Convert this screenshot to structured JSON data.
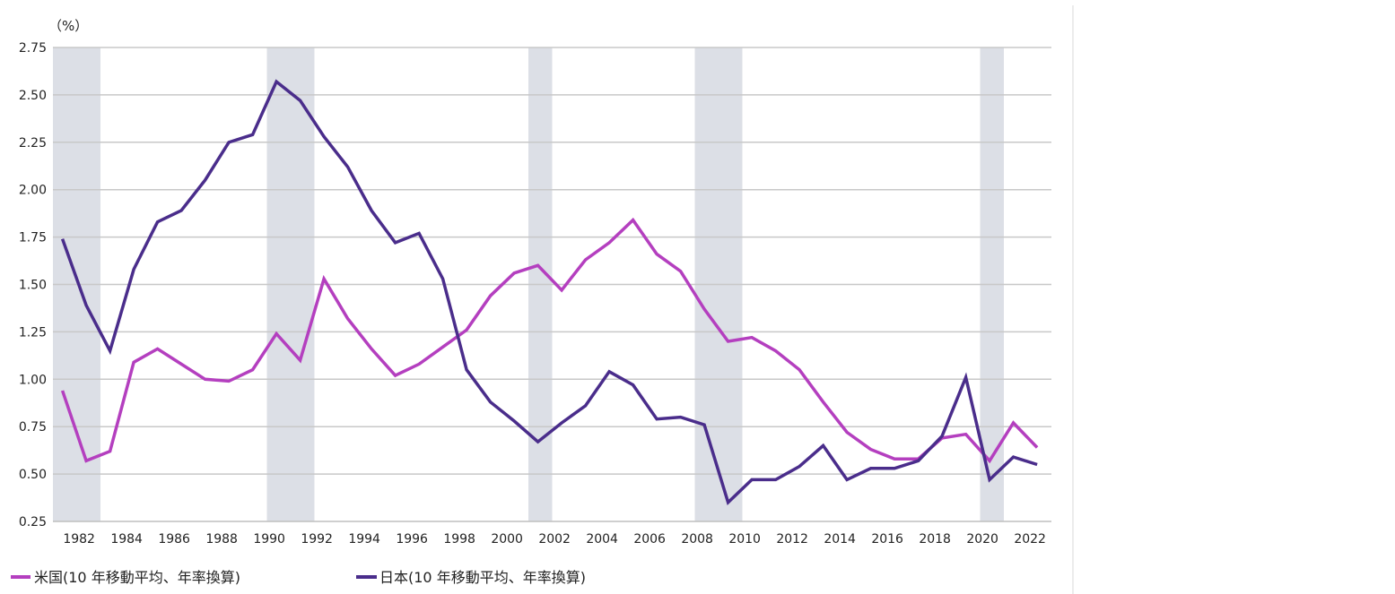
{
  "chart_data": {
    "type": "line",
    "unit_label": "（%）",
    "ylim": [
      0.25,
      2.75
    ],
    "yticks": [
      "0.25",
      "0.50",
      "0.75",
      "1.00",
      "1.25",
      "1.50",
      "1.75",
      "2.00",
      "2.25",
      "2.50",
      "2.75"
    ],
    "xlim": [
      1981.0,
      2023.0
    ],
    "xtick_labels": [
      "1982",
      "1984",
      "1986",
      "1988",
      "1990",
      "1992",
      "1994",
      "1996",
      "1998",
      "2000",
      "2002",
      "2004",
      "2006",
      "2008",
      "2010",
      "2012",
      "2014",
      "2016",
      "2018",
      "2020",
      "2022"
    ],
    "grid": true,
    "recession_periods": [
      [
        1981.0,
        1983.0
      ],
      [
        1990.0,
        1992.0
      ],
      [
        2001.0,
        2002.0
      ],
      [
        2008.0,
        2010.0
      ],
      [
        2020.0,
        2021.0
      ]
    ],
    "series": [
      {
        "name": "米国(10 年移動平均、年率換算)",
        "color": "#b43fbf",
        "x": [
          1981.4,
          1982.4,
          1983.4,
          1984.4,
          1985.4,
          1986.4,
          1987.4,
          1988.4,
          1989.4,
          1990.4,
          1991.4,
          1992.4,
          1993.4,
          1994.4,
          1995.4,
          1996.4,
          1997.4,
          1998.4,
          1999.4,
          2000.4,
          2001.4,
          2002.4,
          2003.4,
          2004.4,
          2005.4,
          2006.4,
          2007.4,
          2008.4,
          2009.4,
          2010.4,
          2011.4,
          2012.4,
          2013.4,
          2014.4,
          2015.4,
          2016.4,
          2017.4,
          2018.4,
          2019.4,
          2020.4,
          2021.4,
          2022.4
        ],
        "values": [
          0.94,
          0.57,
          0.62,
          1.09,
          1.16,
          1.08,
          1.0,
          0.99,
          1.05,
          1.24,
          1.1,
          1.53,
          1.32,
          1.16,
          1.02,
          1.08,
          1.17,
          1.26,
          1.44,
          1.56,
          1.6,
          1.47,
          1.63,
          1.72,
          1.84,
          1.66,
          1.57,
          1.37,
          1.2,
          1.22,
          1.15,
          1.05,
          0.88,
          0.72,
          0.63,
          0.58,
          0.58,
          0.69,
          0.71,
          0.57,
          0.77,
          0.64
        ]
      },
      {
        "name": "日本(10 年移動平均、年率換算)",
        "color": "#4a2d8b",
        "x": [
          1981.4,
          1982.4,
          1983.4,
          1984.4,
          1985.4,
          1986.4,
          1987.4,
          1988.4,
          1989.4,
          1990.4,
          1991.4,
          1992.4,
          1993.4,
          1994.4,
          1995.4,
          1996.4,
          1997.4,
          1998.4,
          1999.4,
          2000.4,
          2001.4,
          2002.4,
          2003.4,
          2004.4,
          2005.4,
          2006.4,
          2007.4,
          2008.4,
          2009.4,
          2010.4,
          2011.4,
          2012.4,
          2013.4,
          2014.4,
          2015.4,
          2016.4,
          2017.4,
          2018.4,
          2019.4,
          2020.4,
          2021.4,
          2022.4
        ],
        "values": [
          1.74,
          1.39,
          1.15,
          1.58,
          1.83,
          1.89,
          2.05,
          2.25,
          2.29,
          2.57,
          2.47,
          2.28,
          2.12,
          1.89,
          1.72,
          1.77,
          1.53,
          1.05,
          0.88,
          0.78,
          0.67,
          0.77,
          0.86,
          1.04,
          0.97,
          0.79,
          0.8,
          0.76,
          0.35,
          0.47,
          0.47,
          0.54,
          0.65,
          0.47,
          0.53,
          0.53,
          0.57,
          0.7,
          1.01,
          0.47,
          0.59,
          0.55
        ]
      }
    ]
  }
}
